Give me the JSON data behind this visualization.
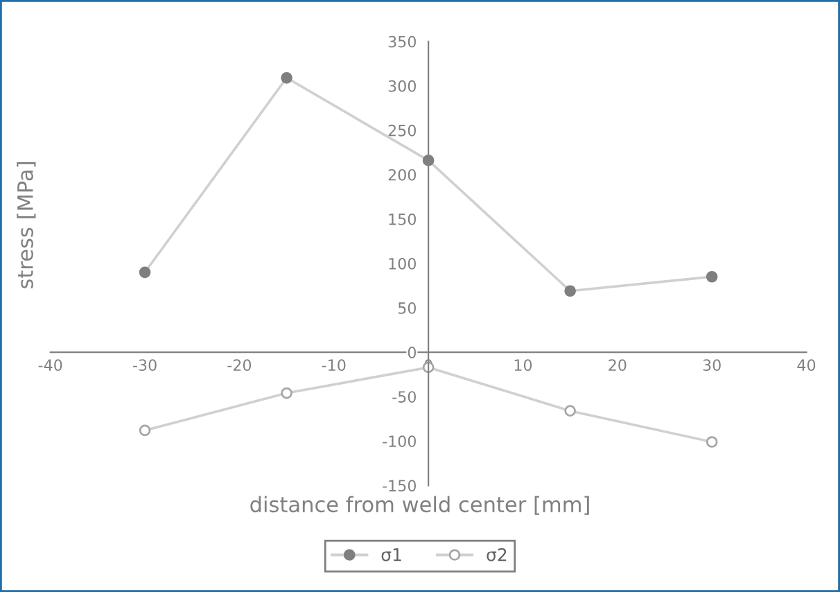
{
  "chart_data": {
    "type": "line",
    "xlabel": "distance from weld center [mm]",
    "ylabel": "stress [MPa]",
    "xlim": [
      -40,
      40
    ],
    "xticks": [
      -40,
      -30,
      -20,
      -10,
      0,
      10,
      20,
      30,
      40
    ],
    "ylim": [
      -150,
      350
    ],
    "yticks": [
      -150,
      -100,
      -50,
      0,
      50,
      100,
      150,
      200,
      250,
      300,
      350
    ],
    "x": [
      -30,
      -15,
      0,
      15,
      30
    ],
    "series": [
      {
        "name": "σ1",
        "color": "#7f7f7f",
        "values": [
          90,
          309,
          216,
          69,
          85
        ]
      },
      {
        "name": "σ2",
        "color": "#a6a6a6",
        "values": [
          -88,
          -46,
          -17,
          -66,
          -101
        ]
      }
    ],
    "marker": "circle",
    "line_style": "solid",
    "grid": false,
    "legend": "bottom"
  }
}
